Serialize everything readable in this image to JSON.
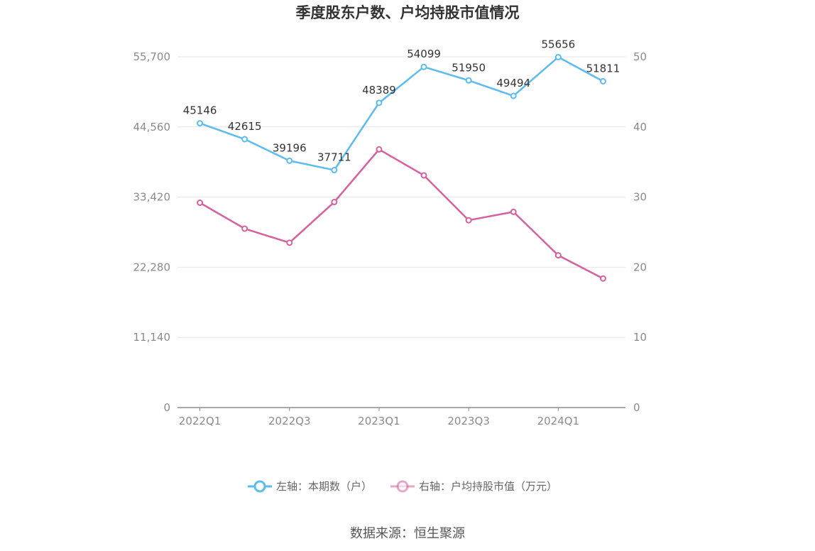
{
  "chart_data": {
    "type": "line",
    "title": "季度股东户数、户均持股市值情况",
    "categories": [
      "2022Q1",
      "2022Q2",
      "2022Q3",
      "2022Q4",
      "2023Q1",
      "2023Q2",
      "2023Q3",
      "2023Q4",
      "2024Q1",
      "2024Q2"
    ],
    "x_tick_labels": [
      "2022Q1",
      "2022Q3",
      "2023Q1",
      "2023Q3",
      "2024Q1"
    ],
    "left_axis": {
      "ticks": [
        "0",
        "11,140",
        "22,280",
        "33,420",
        "44,560",
        "55,700"
      ],
      "ylim": [
        0,
        55700
      ]
    },
    "right_axis": {
      "ticks": [
        "0",
        "10",
        "20",
        "30",
        "40",
        "50"
      ],
      "ylim": [
        0,
        50
      ]
    },
    "series": [
      {
        "name": "左轴：本期数（户）",
        "axis": "left",
        "color": "#5bbcf0",
        "values": [
          45146,
          42615,
          39196,
          37711,
          48389,
          54099,
          51950,
          49494,
          55656,
          51811
        ],
        "labels": [
          "45146",
          "42615",
          "39196",
          "37711",
          "48389",
          "54099",
          "51950",
          "49494",
          "55656",
          "51811"
        ]
      },
      {
        "name": "右轴：户均持股市值（万元）",
        "axis": "right",
        "color": "#d7609e",
        "values": [
          29.2,
          25.5,
          23.5,
          29.3,
          36.8,
          33.1,
          26.7,
          27.9,
          21.7,
          18.4
        ]
      }
    ],
    "grid": true,
    "legend_position": "bottom"
  },
  "source": "数据来源：恒生聚源"
}
